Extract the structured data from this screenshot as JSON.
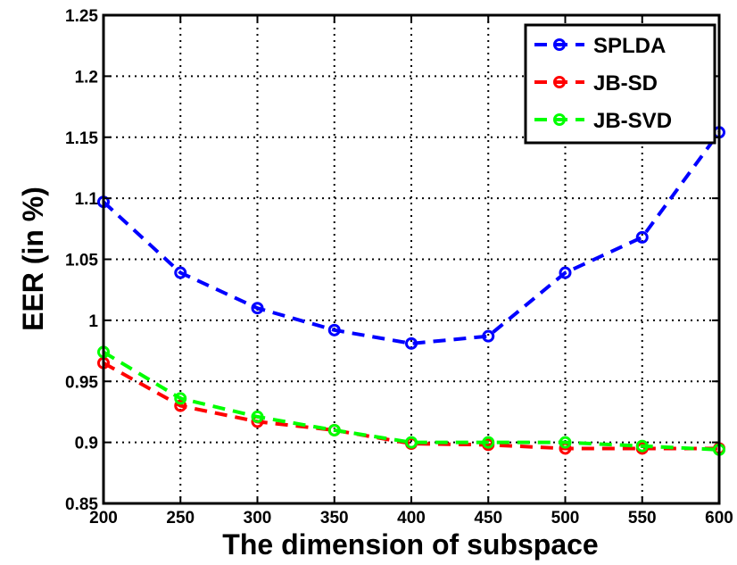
{
  "chart_data": {
    "type": "line",
    "xlabel": "The dimension of subspace",
    "ylabel": "EER (in %)",
    "x": [
      200,
      250,
      300,
      350,
      400,
      450,
      500,
      550,
      600
    ],
    "xlim": [
      200,
      600
    ],
    "ylim": [
      0.85,
      1.25
    ],
    "xticks": [
      "200",
      "250",
      "300",
      "350",
      "400",
      "450",
      "500",
      "550",
      "600"
    ],
    "yticks": [
      "0.85",
      "0.9",
      "0.95",
      "1",
      "1.05",
      "1.1",
      "1.15",
      "1.2",
      "1.25"
    ],
    "grid": true,
    "legend_position": "top-right",
    "series": [
      {
        "name": "SPLDA",
        "color": "#0000ff",
        "values": [
          1.097,
          1.039,
          1.01,
          0.992,
          0.981,
          0.987,
          1.039,
          1.068,
          1.154
        ]
      },
      {
        "name": "JB-SD",
        "color": "#ff0000",
        "values": [
          0.965,
          0.93,
          0.917,
          0.91,
          0.899,
          0.898,
          0.895,
          0.895,
          0.895
        ]
      },
      {
        "name": "JB-SVD",
        "color": "#00ff00",
        "values": [
          0.974,
          0.936,
          0.921,
          0.91,
          0.9,
          0.9,
          0.9,
          0.897,
          0.894
        ]
      }
    ]
  }
}
